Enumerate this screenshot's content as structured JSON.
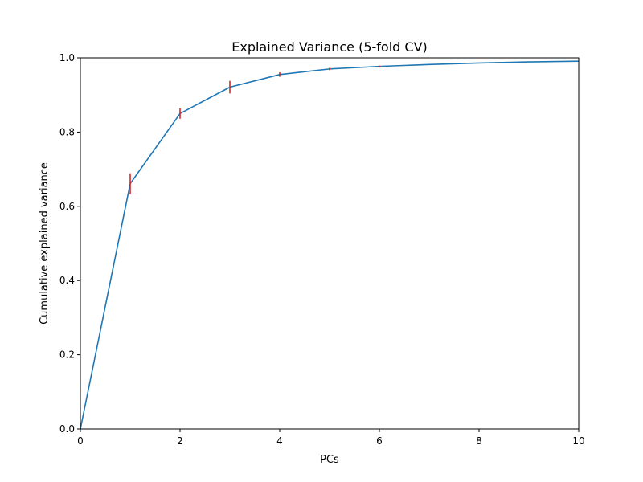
{
  "chart_data": {
    "type": "line",
    "title": "Explained Variance (5-fold CV)",
    "xlabel": "PCs",
    "ylabel": "Cumulative explained variance",
    "xlim": [
      0,
      10
    ],
    "ylim": [
      0,
      1
    ],
    "xticks": [
      "0",
      "2",
      "4",
      "6",
      "8",
      "10"
    ],
    "yticks": [
      "0.0",
      "0.2",
      "0.4",
      "0.6",
      "0.8",
      "1.0"
    ],
    "grid": false,
    "series": [
      {
        "color": "#1f77b4",
        "x": [
          0,
          1,
          2,
          3,
          4,
          5,
          6,
          7,
          8,
          9,
          10
        ],
        "y": [
          0.0,
          0.661,
          0.85,
          0.921,
          0.955,
          0.97,
          0.977,
          0.982,
          0.986,
          0.989,
          0.991
        ]
      }
    ],
    "error_bars": {
      "color": "#d62728",
      "x": [
        1,
        2,
        3,
        4,
        5,
        6
      ],
      "y": [
        0.661,
        0.85,
        0.921,
        0.955,
        0.97,
        0.977
      ],
      "err": [
        0.028,
        0.014,
        0.017,
        0.006,
        0.003,
        0.002
      ]
    }
  }
}
